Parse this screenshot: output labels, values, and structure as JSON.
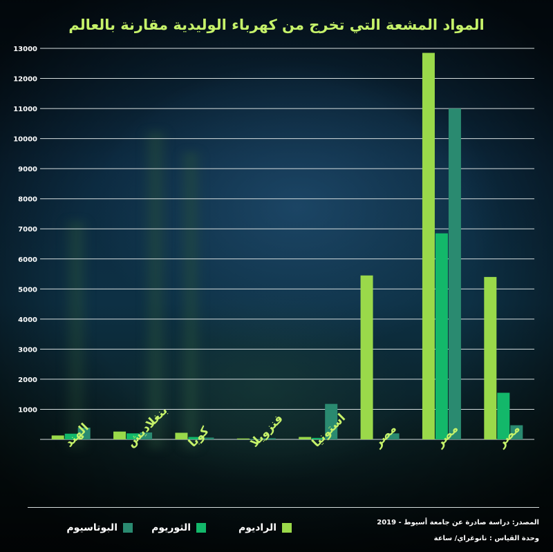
{
  "title": "المواد المشعة التي تخرج من كهرباء الوليدية مقارنة بالعالم",
  "source_text": "المصدر: دراسة صادرة عن جامعة أسيوط - 2019",
  "unit_text": "وحدة القياس : نانوغراي/ ساعة",
  "colors": {
    "radium": "#9ad94a",
    "thorium": "#13b86a",
    "potassium": "#2a8a70",
    "title": "#c6f26a",
    "grid": "#d8e0e0"
  },
  "chart_data": {
    "type": "bar",
    "title": "المواد المشعة التي تخرج من كهرباء الوليدية مقارنة بالعالم",
    "ylim": [
      0,
      13000
    ],
    "yticks": [
      1000,
      2000,
      3000,
      4000,
      5000,
      6000,
      7000,
      8000,
      9000,
      10000,
      11000,
      12000,
      13000
    ],
    "grid": true,
    "legend_position": "bottom",
    "categories": [
      "الهند",
      "بنغلاديش",
      "كوبا",
      "فنزويلا",
      "استونيا",
      "مصر",
      "مصر",
      "مصر"
    ],
    "series": [
      {
        "name": "الراديوم",
        "color_key": "radium",
        "values": [
          130,
          260,
          220,
          30,
          80,
          5450,
          12850,
          5400
        ]
      },
      {
        "name": "الثوريوم",
        "color_key": "thorium",
        "values": [
          190,
          200,
          80,
          10,
          50,
          0,
          6850,
          1550
        ]
      },
      {
        "name": "البوتاسيوم",
        "color_key": "potassium",
        "values": [
          390,
          230,
          60,
          40,
          1180,
          200,
          11000,
          470
        ]
      }
    ]
  }
}
